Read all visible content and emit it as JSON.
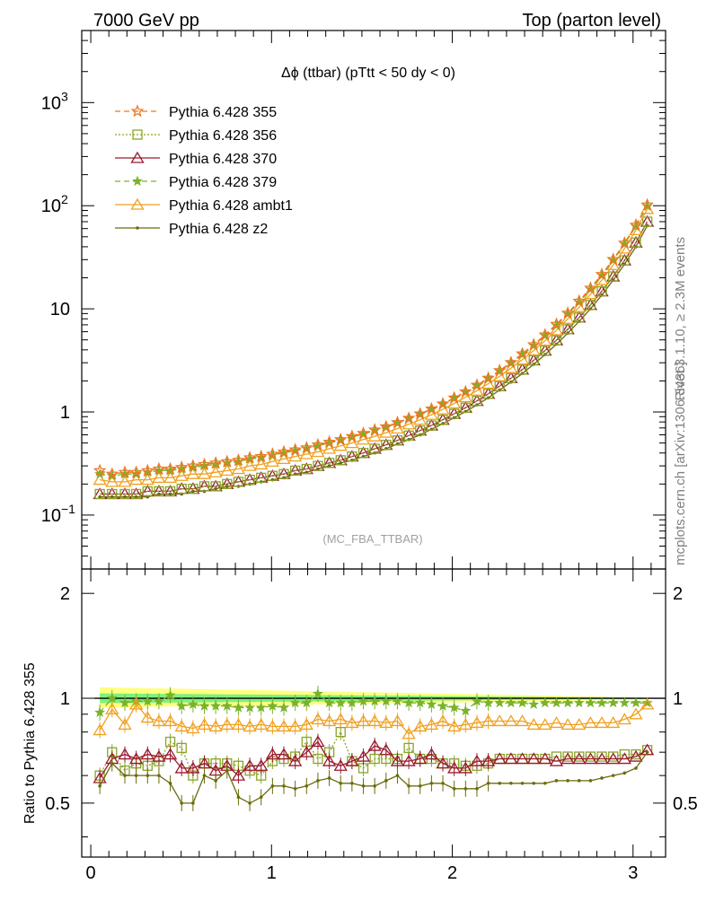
{
  "header": {
    "left": "7000 GeV pp",
    "right": "Top (parton level)"
  },
  "side_labels": {
    "rivet": "Rivet 3.1.10, ≥ 2.3M events",
    "mcplots": "mcplots.cern.ch [arXiv:1306.3436]"
  },
  "analysis_tag": "(MC_FBA_TTBAR)",
  "chart_data": [
    {
      "type": "line",
      "title": "Δϕ (ttbar) (pTtt < 50 dy < 0)",
      "xlabel": "",
      "ylabel": "",
      "xlim": [
        -0.05,
        3.18
      ],
      "ylim": [
        0.03,
        5000
      ],
      "yscale": "log",
      "yticks": [
        {
          "v": 0.1,
          "base": "10",
          "exp": "−1"
        },
        {
          "v": 1,
          "base": "1",
          "exp": ""
        },
        {
          "v": 10,
          "base": "10",
          "exp": ""
        },
        {
          "v": 100,
          "base": "10",
          "exp": "2"
        },
        {
          "v": 1000,
          "base": "10",
          "exp": "3"
        }
      ],
      "legend_position": "top-left",
      "x": [
        0.05,
        0.1178,
        0.1885,
        0.2513,
        0.3142,
        0.377,
        0.4398,
        0.5027,
        0.5655,
        0.6283,
        0.6912,
        0.754,
        0.8168,
        0.8796,
        0.9425,
        1.0053,
        1.0681,
        1.131,
        1.1938,
        1.2566,
        1.3195,
        1.3823,
        1.4451,
        1.508,
        1.5708,
        1.6336,
        1.6965,
        1.7593,
        1.8221,
        1.885,
        1.9478,
        2.0106,
        2.0735,
        2.1363,
        2.1991,
        2.2619,
        2.3248,
        2.3876,
        2.4504,
        2.5133,
        2.5761,
        2.6389,
        2.7018,
        2.7646,
        2.8274,
        2.8903,
        2.9531,
        3.0159,
        3.0788
      ],
      "series": [
        {
          "name": "Pythia 6.428 355",
          "color": "#ee7722",
          "dash": "6,4",
          "marker": "star-open",
          "values": [
            0.27,
            0.25,
            0.26,
            0.26,
            0.27,
            0.28,
            0.28,
            0.29,
            0.3,
            0.31,
            0.32,
            0.33,
            0.34,
            0.36,
            0.37,
            0.39,
            0.41,
            0.43,
            0.45,
            0.48,
            0.51,
            0.54,
            0.58,
            0.62,
            0.67,
            0.72,
            0.79,
            0.87,
            0.96,
            1.07,
            1.2,
            1.37,
            1.57,
            1.82,
            2.13,
            2.52,
            3.02,
            3.67,
            4.5,
            5.6,
            7.1,
            9.1,
            11.9,
            15.9,
            21.6,
            30.2,
            43.5,
            65,
            102
          ]
        },
        {
          "name": "Pythia 6.428 356",
          "color": "#8aa428",
          "dash": "2,2",
          "marker": "square-open",
          "values": [
            0.16,
            0.16,
            0.16,
            0.16,
            0.17,
            0.17,
            0.17,
            0.18,
            0.18,
            0.19,
            0.19,
            0.2,
            0.21,
            0.22,
            0.23,
            0.24,
            0.25,
            0.27,
            0.28,
            0.3,
            0.32,
            0.34,
            0.37,
            0.4,
            0.44,
            0.48,
            0.53,
            0.59,
            0.66,
            0.74,
            0.84,
            0.96,
            1.1,
            1.28,
            1.5,
            1.78,
            2.13,
            2.58,
            3.17,
            3.94,
            4.96,
            6.34,
            8.24,
            10.9,
            14.8,
            20.6,
            29.5,
            44,
            70
          ]
        },
        {
          "name": "Pythia 6.428 370",
          "color": "#9a1a2e",
          "dash": "",
          "marker": "triangle-open",
          "values": [
            0.16,
            0.16,
            0.16,
            0.16,
            0.17,
            0.17,
            0.17,
            0.18,
            0.18,
            0.19,
            0.19,
            0.2,
            0.21,
            0.22,
            0.23,
            0.24,
            0.25,
            0.27,
            0.28,
            0.3,
            0.32,
            0.34,
            0.37,
            0.4,
            0.44,
            0.48,
            0.53,
            0.59,
            0.66,
            0.74,
            0.84,
            0.96,
            1.1,
            1.28,
            1.5,
            1.78,
            2.13,
            2.58,
            3.17,
            3.94,
            4.96,
            6.34,
            8.24,
            10.9,
            14.8,
            20.6,
            29.5,
            44,
            70
          ]
        },
        {
          "name": "Pythia 6.428 379",
          "color": "#7ab32a",
          "dash": "6,4",
          "marker": "star-filled",
          "values": [
            0.25,
            0.24,
            0.25,
            0.25,
            0.26,
            0.27,
            0.27,
            0.28,
            0.29,
            0.3,
            0.31,
            0.32,
            0.33,
            0.35,
            0.36,
            0.38,
            0.4,
            0.42,
            0.44,
            0.47,
            0.5,
            0.53,
            0.57,
            0.61,
            0.66,
            0.71,
            0.78,
            0.86,
            0.95,
            1.06,
            1.19,
            1.36,
            1.56,
            1.8,
            2.1,
            2.48,
            2.97,
            3.6,
            4.4,
            5.5,
            6.9,
            8.9,
            11.6,
            15.5,
            21.1,
            29.5,
            42.5,
            63,
            99
          ]
        },
        {
          "name": "Pythia 6.428 ambt1",
          "color": "#f0a020",
          "dash": "",
          "marker": "triangle-open",
          "values": [
            0.22,
            0.21,
            0.21,
            0.22,
            0.22,
            0.23,
            0.23,
            0.24,
            0.25,
            0.25,
            0.26,
            0.27,
            0.28,
            0.3,
            0.31,
            0.33,
            0.35,
            0.37,
            0.39,
            0.41,
            0.44,
            0.47,
            0.5,
            0.54,
            0.58,
            0.63,
            0.69,
            0.76,
            0.84,
            0.94,
            1.06,
            1.21,
            1.39,
            1.61,
            1.88,
            2.22,
            2.66,
            3.22,
            3.95,
            4.9,
            6.2,
            8.0,
            10.4,
            13.9,
            19.0,
            26.6,
            38.5,
            58,
            93
          ]
        },
        {
          "name": "Pythia 6.428 z2",
          "color": "#6b6b0c",
          "dash": "",
          "marker": "dot",
          "values": [
            0.15,
            0.15,
            0.15,
            0.15,
            0.15,
            0.16,
            0.16,
            0.16,
            0.17,
            0.17,
            0.18,
            0.19,
            0.19,
            0.2,
            0.21,
            0.22,
            0.23,
            0.25,
            0.26,
            0.28,
            0.3,
            0.32,
            0.34,
            0.37,
            0.4,
            0.44,
            0.49,
            0.54,
            0.6,
            0.68,
            0.77,
            0.88,
            1.01,
            1.17,
            1.37,
            1.63,
            1.95,
            2.36,
            2.9,
            3.6,
            4.54,
            5.81,
            7.55,
            10.0,
            13.6,
            19.0,
            27.1,
            40,
            64
          ]
        }
      ]
    },
    {
      "type": "line",
      "title": "",
      "xlabel": "",
      "ylabel": "Ratio to Pythia 6.428 355",
      "xlim": [
        -0.05,
        3.18
      ],
      "ylim": [
        0.35,
        2.35
      ],
      "yscale": "log",
      "yticks": [
        0.5,
        1,
        2
      ],
      "xticks": [
        0,
        1,
        2,
        3
      ],
      "band": {
        "name": "reference uncertainty",
        "outer_color": "#ffff80",
        "inner_color": "#7ff07f"
      },
      "x": [
        0.05,
        0.1178,
        0.1885,
        0.2513,
        0.3142,
        0.377,
        0.4398,
        0.5027,
        0.5655,
        0.6283,
        0.6912,
        0.754,
        0.8168,
        0.8796,
        0.9425,
        1.0053,
        1.0681,
        1.131,
        1.1938,
        1.2566,
        1.3195,
        1.3823,
        1.4451,
        1.508,
        1.5708,
        1.6336,
        1.6965,
        1.7593,
        1.8221,
        1.885,
        1.9478,
        2.0106,
        2.0735,
        2.1363,
        2.1991,
        2.2619,
        2.3248,
        2.3876,
        2.4504,
        2.5133,
        2.5761,
        2.6389,
        2.7018,
        2.7646,
        2.8274,
        2.8903,
        2.9531,
        3.0159,
        3.0788
      ],
      "series": [
        {
          "name": "Pythia 6.428 356",
          "values": [
            0.6,
            0.7,
            0.62,
            0.65,
            0.64,
            0.66,
            0.75,
            0.72,
            0.6,
            0.65,
            0.65,
            0.65,
            0.64,
            0.62,
            0.6,
            0.66,
            0.67,
            0.68,
            0.75,
            0.67,
            0.7,
            0.8,
            0.66,
            0.63,
            0.67,
            0.67,
            0.67,
            0.72,
            0.67,
            0.67,
            0.65,
            0.65,
            0.64,
            0.64,
            0.65,
            0.67,
            0.67,
            0.67,
            0.67,
            0.67,
            0.68,
            0.68,
            0.68,
            0.68,
            0.68,
            0.68,
            0.69,
            0.69,
            0.71
          ]
        },
        {
          "name": "Pythia 6.428 370",
          "values": [
            0.59,
            0.67,
            0.69,
            0.67,
            0.69,
            0.68,
            0.69,
            0.63,
            0.63,
            0.65,
            0.62,
            0.64,
            0.6,
            0.64,
            0.64,
            0.69,
            0.69,
            0.66,
            0.7,
            0.75,
            0.66,
            0.64,
            0.66,
            0.68,
            0.73,
            0.71,
            0.66,
            0.66,
            0.67,
            0.69,
            0.65,
            0.63,
            0.63,
            0.66,
            0.66,
            0.67,
            0.67,
            0.67,
            0.67,
            0.67,
            0.66,
            0.67,
            0.67,
            0.67,
            0.67,
            0.67,
            0.67,
            0.68,
            0.71
          ]
        },
        {
          "name": "Pythia 6.428 379",
          "values": [
            0.91,
            1.0,
            0.97,
            0.98,
            0.98,
            0.98,
            1.02,
            0.95,
            0.96,
            0.95,
            0.95,
            0.95,
            0.94,
            0.94,
            0.94,
            0.95,
            0.94,
            0.97,
            0.97,
            1.03,
            0.97,
            0.97,
            0.97,
            0.98,
            0.98,
            0.98,
            0.98,
            0.97,
            0.97,
            0.96,
            0.95,
            0.94,
            0.92,
            0.98,
            0.97,
            0.97,
            0.97,
            0.97,
            0.96,
            0.97,
            0.97,
            0.97,
            0.97,
            0.97,
            0.97,
            0.97,
            0.97,
            0.97,
            0.97
          ]
        },
        {
          "name": "Pythia 6.428 ambt1",
          "values": [
            0.81,
            0.93,
            0.84,
            0.96,
            0.88,
            0.86,
            0.86,
            0.83,
            0.82,
            0.84,
            0.83,
            0.84,
            0.84,
            0.83,
            0.84,
            0.83,
            0.83,
            0.83,
            0.84,
            0.87,
            0.86,
            0.87,
            0.85,
            0.86,
            0.86,
            0.85,
            0.86,
            0.79,
            0.83,
            0.84,
            0.86,
            0.83,
            0.84,
            0.85,
            0.86,
            0.86,
            0.86,
            0.86,
            0.84,
            0.84,
            0.85,
            0.84,
            0.84,
            0.85,
            0.85,
            0.85,
            0.87,
            0.9,
            0.96
          ]
        },
        {
          "name": "Pythia 6.428 z2",
          "values": [
            0.56,
            0.65,
            0.6,
            0.6,
            0.6,
            0.6,
            0.57,
            0.5,
            0.5,
            0.6,
            0.58,
            0.62,
            0.52,
            0.5,
            0.52,
            0.56,
            0.56,
            0.55,
            0.56,
            0.58,
            0.59,
            0.57,
            0.57,
            0.56,
            0.56,
            0.58,
            0.6,
            0.56,
            0.56,
            0.57,
            0.57,
            0.55,
            0.55,
            0.55,
            0.57,
            0.57,
            0.57,
            0.57,
            0.57,
            0.57,
            0.58,
            0.58,
            0.58,
            0.58,
            0.59,
            0.6,
            0.61,
            0.63,
            0.7
          ]
        }
      ]
    }
  ]
}
